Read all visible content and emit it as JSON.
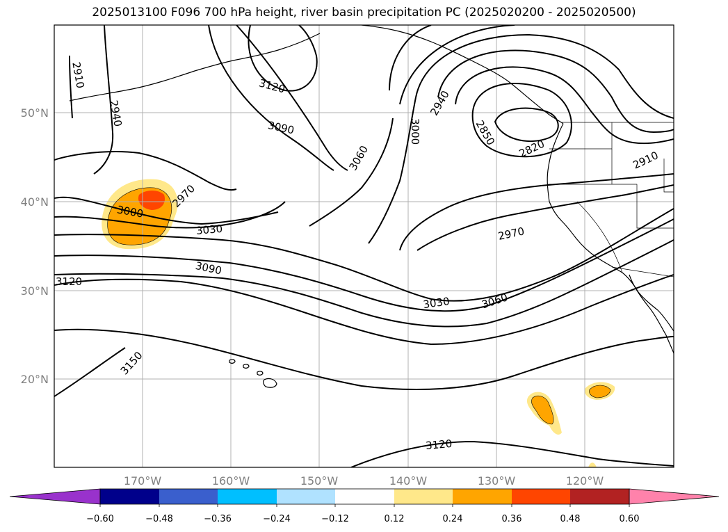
{
  "title": "2025013100 F096 700 hPa height, river basin precipitation PC (2025020200 - 2025020500)",
  "map": {
    "lat_labels": [
      "50°N",
      "40°N",
      "30°N",
      "20°N"
    ],
    "lon_labels": [
      "170°W",
      "160°W",
      "150°W",
      "140°W",
      "130°W",
      "120°W"
    ],
    "contour_labels": [
      "2910",
      "2940",
      "3120",
      "3090",
      "3060",
      "3000",
      "2940",
      "2850",
      "2820",
      "2910",
      "2970",
      "3000",
      "3030",
      "2970",
      "3120",
      "3090",
      "3030",
      "3060",
      "3150",
      "3120"
    ]
  },
  "colorbar": {
    "tick_labels": [
      "−0.60",
      "−0.48",
      "−0.36",
      "−0.24",
      "−0.12",
      "0.12",
      "0.24",
      "0.36",
      "0.48",
      "0.60"
    ],
    "colors": [
      "#9932cc",
      "#00008b",
      "#3a5fcd",
      "#00bfff",
      "#b0e2ff",
      "#ffffff",
      "#ffe88a",
      "#ffa500",
      "#ff4500",
      "#b22222",
      "#ff82ab"
    ]
  }
}
